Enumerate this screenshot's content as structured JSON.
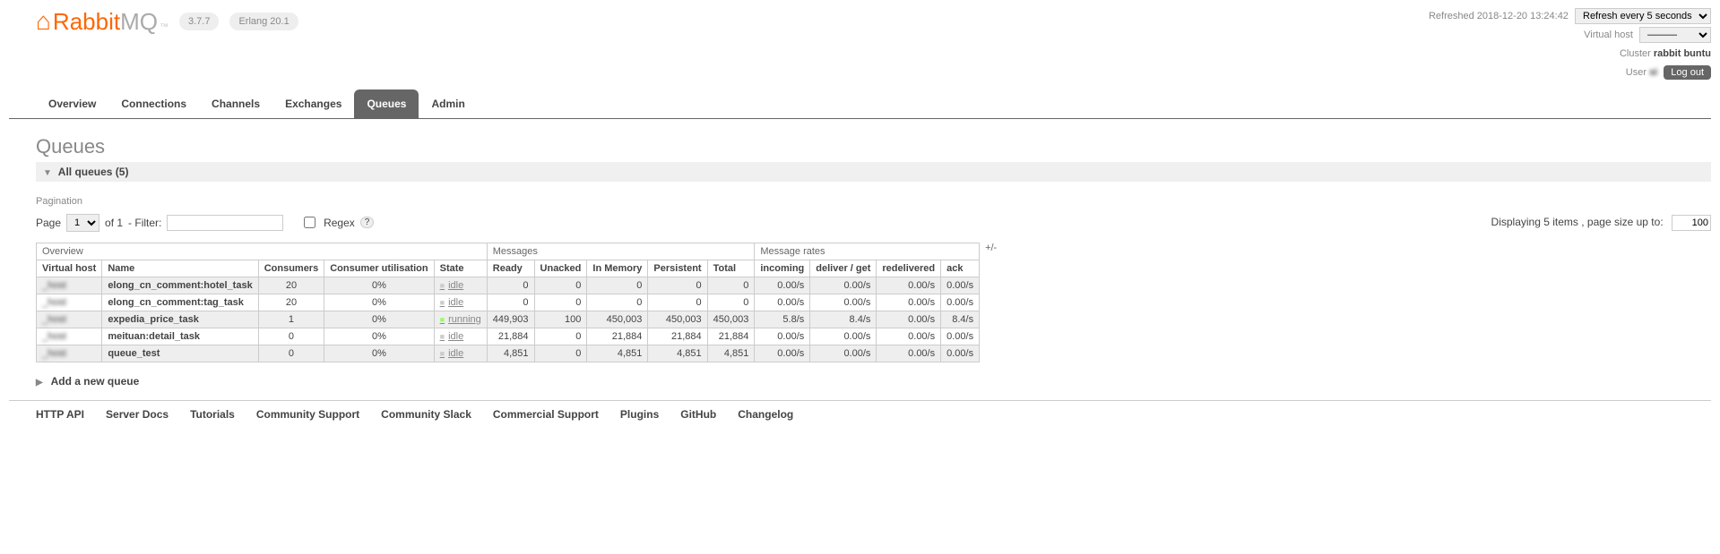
{
  "header": {
    "logo_text1": "Rabbit",
    "logo_text2": "MQ",
    "version": "3.7.7",
    "erlang": "Erlang 20.1",
    "refreshed_label": "Refreshed",
    "refreshed_time": "2018-12-20 13:24:42",
    "refresh_option": "Refresh every 5 seconds",
    "vhost_label": "Virtual host",
    "vhost_value": "———",
    "cluster_label": "Cluster",
    "cluster_value": "rabbit   buntu",
    "user_label": "User",
    "user_value": "si   ",
    "logout": "Log out"
  },
  "tabs": [
    {
      "label": "Overview",
      "active": false
    },
    {
      "label": "Connections",
      "active": false
    },
    {
      "label": "Channels",
      "active": false
    },
    {
      "label": "Exchanges",
      "active": false
    },
    {
      "label": "Queues",
      "active": true
    },
    {
      "label": "Admin",
      "active": false
    }
  ],
  "page": {
    "title": "Queues",
    "all_queues_label": "All queues (5)",
    "pagination_label": "Pagination",
    "page_label": "Page",
    "page_value": "1",
    "of_label": "of 1",
    "filter_label": "- Filter:",
    "regex_label": "Regex",
    "displaying_text": "Displaying 5 items , page size up to:",
    "page_size": "100",
    "add_queue_label": "Add a new queue",
    "plus_minus": "+/-"
  },
  "table": {
    "group_headers": {
      "overview": "Overview",
      "messages": "Messages",
      "rates": "Message rates"
    },
    "headers": {
      "vhost": "Virtual host",
      "name": "Name",
      "consumers": "Consumers",
      "util": "Consumer utilisation",
      "state": "State",
      "ready": "Ready",
      "unacked": "Unacked",
      "in_memory": "In Memory",
      "persistent": "Persistent",
      "total": "Total",
      "incoming": "incoming",
      "deliver": "deliver / get",
      "redelivered": "redelivered",
      "ack": "ack"
    },
    "rows": [
      {
        "vhost": "_host",
        "name": "elong_cn_comment:hotel_task",
        "consumers": "20",
        "util": "0%",
        "state": "idle",
        "ready": "0",
        "unacked": "0",
        "in_memory": "0",
        "persistent": "0",
        "total": "0",
        "incoming": "0.00/s",
        "deliver": "0.00/s",
        "redelivered": "0.00/s",
        "ack": "0.00/s"
      },
      {
        "vhost": "_host",
        "name": "elong_cn_comment:tag_task",
        "consumers": "20",
        "util": "0%",
        "state": "idle",
        "ready": "0",
        "unacked": "0",
        "in_memory": "0",
        "persistent": "0",
        "total": "0",
        "incoming": "0.00/s",
        "deliver": "0.00/s",
        "redelivered": "0.00/s",
        "ack": "0.00/s"
      },
      {
        "vhost": "_host",
        "name": "expedia_price_task",
        "consumers": "1",
        "util": "0%",
        "state": "running",
        "ready": "449,903",
        "unacked": "100",
        "in_memory": "450,003",
        "persistent": "450,003",
        "total": "450,003",
        "incoming": "5.8/s",
        "deliver": "8.4/s",
        "redelivered": "0.00/s",
        "ack": "8.4/s"
      },
      {
        "vhost": "_host",
        "name": "meituan:detail_task",
        "consumers": "0",
        "util": "0%",
        "state": "idle",
        "ready": "21,884",
        "unacked": "0",
        "in_memory": "21,884",
        "persistent": "21,884",
        "total": "21,884",
        "incoming": "0.00/s",
        "deliver": "0.00/s",
        "redelivered": "0.00/s",
        "ack": "0.00/s"
      },
      {
        "vhost": "_host",
        "name": "queue_test",
        "consumers": "0",
        "util": "0%",
        "state": "idle",
        "ready": "4,851",
        "unacked": "0",
        "in_memory": "4,851",
        "persistent": "4,851",
        "total": "4,851",
        "incoming": "0.00/s",
        "deliver": "0.00/s",
        "redelivered": "0.00/s",
        "ack": "0.00/s"
      }
    ]
  },
  "footer": {
    "links": [
      "HTTP API",
      "Server Docs",
      "Tutorials",
      "Community Support",
      "Community Slack",
      "Commercial Support",
      "Plugins",
      "GitHub",
      "Changelog"
    ]
  }
}
